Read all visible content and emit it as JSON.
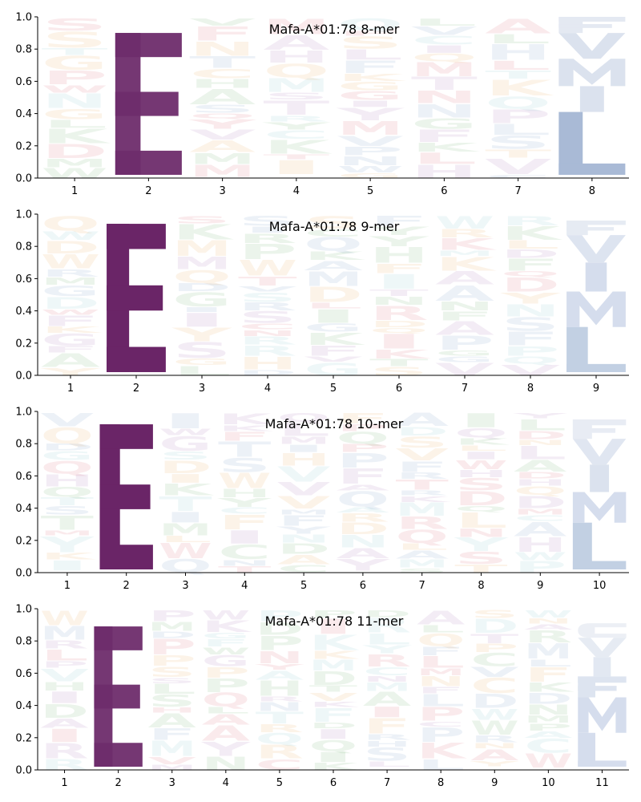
{
  "chart_data": [
    {
      "type": "sequence-logo",
      "title": "Mafa-A*01:78 8-mer",
      "positions": [
        "1",
        "2",
        "3",
        "4",
        "5",
        "6",
        "7",
        "8"
      ],
      "ylim": [
        0,
        1.0
      ],
      "yticks": [
        "0.0",
        "0.2",
        "0.4",
        "0.6",
        "0.8",
        "1.0"
      ],
      "dominant": [
        {
          "position": "2",
          "stack": [
            {
              "letter": "E",
              "value": 0.88,
              "color": "#6e2c6b",
              "opacity": 0.95
            }
          ]
        },
        {
          "position": "8",
          "stack": [
            {
              "letter": "L",
              "value": 0.39,
              "color": "#a9bad6",
              "opacity": 1.0
            },
            {
              "letter": "I",
              "value": 0.16,
              "color": "#dbe2ee",
              "opacity": 1.0
            },
            {
              "letter": "M",
              "value": 0.17,
              "color": "#dbe2ee",
              "opacity": 1.0
            },
            {
              "letter": "V",
              "value": 0.16,
              "color": "#dbe2ee",
              "opacity": 1.0
            },
            {
              "letter": "F",
              "value": 0.1,
              "color": "#e4e9f2",
              "opacity": 1.0
            }
          ]
        }
      ]
    },
    {
      "type": "sequence-logo",
      "title": "Mafa-A*01:78 9-mer",
      "positions": [
        "1",
        "2",
        "3",
        "4",
        "5",
        "6",
        "7",
        "8",
        "9"
      ],
      "ylim": [
        0,
        1.0
      ],
      "yticks": [
        "0.0",
        "0.2",
        "0.4",
        "0.6",
        "0.8",
        "1.0"
      ],
      "dominant": [
        {
          "position": "2",
          "stack": [
            {
              "letter": "E",
              "value": 0.92,
              "color": "#6a2567",
              "opacity": 1.0
            }
          ]
        },
        {
          "position": "9",
          "stack": [
            {
              "letter": "L",
              "value": 0.28,
              "color": "#c2d0e3",
              "opacity": 1.0
            },
            {
              "letter": "M",
              "value": 0.22,
              "color": "#d5dded",
              "opacity": 1.0
            },
            {
              "letter": "I",
              "value": 0.18,
              "color": "#d5dded",
              "opacity": 1.0
            },
            {
              "letter": "V",
              "value": 0.17,
              "color": "#dde4f0",
              "opacity": 1.0
            },
            {
              "letter": "F",
              "value": 0.09,
              "color": "#e6ebf3",
              "opacity": 1.0
            }
          ]
        }
      ]
    },
    {
      "type": "sequence-logo",
      "title": "Mafa-A*01:78 10-mer",
      "positions": [
        "1",
        "2",
        "3",
        "4",
        "5",
        "6",
        "7",
        "8",
        "9",
        "10"
      ],
      "ylim": [
        0,
        1.0
      ],
      "yticks": [
        "0.0",
        "0.2",
        "0.4",
        "0.6",
        "0.8",
        "1.0"
      ],
      "dominant": [
        {
          "position": "2",
          "stack": [
            {
              "letter": "E",
              "value": 0.9,
              "color": "#6a2567",
              "opacity": 1.0
            }
          ]
        },
        {
          "position": "10",
          "stack": [
            {
              "letter": "L",
              "value": 0.29,
              "color": "#c2d0e3",
              "opacity": 1.0
            },
            {
              "letter": "M",
              "value": 0.19,
              "color": "#d5dded",
              "opacity": 1.0
            },
            {
              "letter": "I",
              "value": 0.17,
              "color": "#dbe2ee",
              "opacity": 1.0
            },
            {
              "letter": "V",
              "value": 0.16,
              "color": "#e0e6f1",
              "opacity": 1.0
            },
            {
              "letter": "F",
              "value": 0.12,
              "color": "#e8ecf4",
              "opacity": 1.0
            }
          ]
        }
      ]
    },
    {
      "type": "sequence-logo",
      "title": "Mafa-A*01:78 11-mer",
      "positions": [
        "1",
        "2",
        "3",
        "4",
        "5",
        "6",
        "7",
        "8",
        "9",
        "10",
        "11"
      ],
      "ylim": [
        0,
        1.0
      ],
      "yticks": [
        "0.0",
        "0.2",
        "0.4",
        "0.6",
        "0.8",
        "1.0"
      ],
      "dominant": [
        {
          "position": "2",
          "stack": [
            {
              "letter": "E",
              "value": 0.87,
              "color": "#6e2c6b",
              "opacity": 0.95
            }
          ]
        },
        {
          "position": "11",
          "stack": [
            {
              "letter": "L",
              "value": 0.21,
              "color": "#d5dded",
              "opacity": 1.0
            },
            {
              "letter": "M",
              "value": 0.22,
              "color": "#d5dded",
              "opacity": 1.0
            },
            {
              "letter": "F",
              "value": 0.13,
              "color": "#dde4f0",
              "opacity": 1.0
            },
            {
              "letter": "I",
              "value": 0.12,
              "color": "#e2e8f2",
              "opacity": 1.0
            },
            {
              "letter": "V",
              "value": 0.12,
              "color": "#e6ebf3",
              "opacity": 1.0
            },
            {
              "letter": "C",
              "value": 0.09,
              "color": "#eceff5",
              "opacity": 1.0
            }
          ]
        }
      ]
    }
  ],
  "background_palette": [
    "#6b8fc4",
    "#d8606a",
    "#65ad66",
    "#a270b0",
    "#e5a44c",
    "#78c0cc"
  ],
  "background_letters": [
    "A",
    "R",
    "N",
    "D",
    "C",
    "Q",
    "G",
    "H",
    "K",
    "M",
    "F",
    "P",
    "S",
    "T",
    "W",
    "Y",
    "V",
    "L",
    "I"
  ]
}
